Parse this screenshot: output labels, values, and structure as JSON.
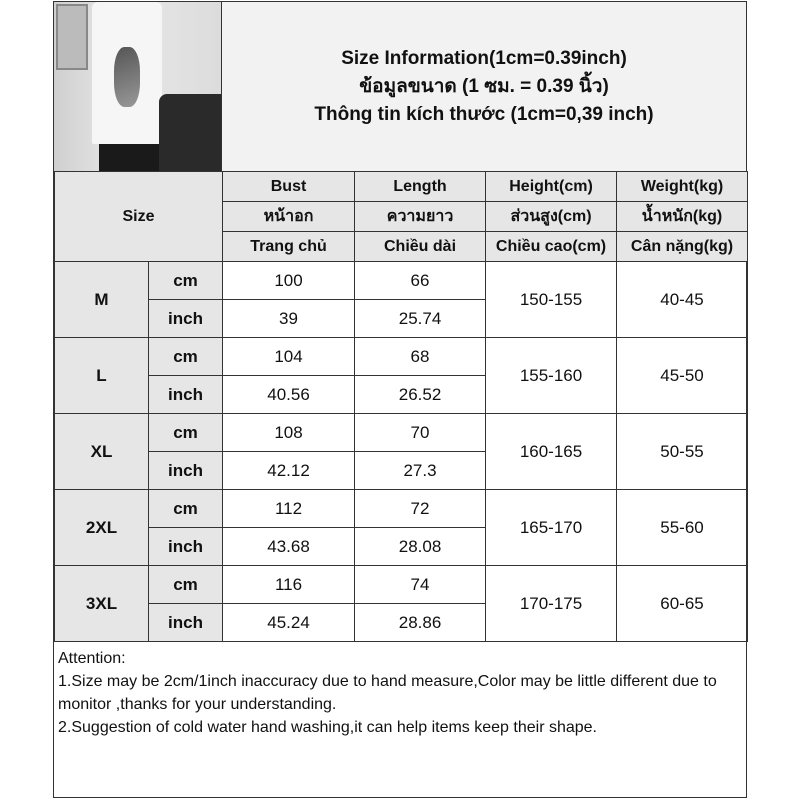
{
  "title": {
    "line1": "Size Information(1cm=0.39inch)",
    "line2": "ข้อมูลขนาด (1 ซม. = 0.39 นิ้ว)",
    "line3": "Thông tin kích thước (1cm=0,39 inch)"
  },
  "table": {
    "size_label": "Size",
    "headers": [
      [
        "Bust",
        "Length",
        "Height(cm)",
        "Weight(kg)"
      ],
      [
        "หน้าอก",
        "ความยาว",
        "ส่วนสูง(cm)",
        "น้ำหนัก(kg)"
      ],
      [
        "Trang chủ",
        "Chiều dài",
        "Chiều cao(cm)",
        "Cân nặng(kg)"
      ]
    ],
    "units": [
      "cm",
      "inch"
    ],
    "rows": [
      {
        "size": "M",
        "bust_cm": "100",
        "length_cm": "66",
        "bust_in": "39",
        "length_in": "25.74",
        "height": "150-155",
        "weight": "40-45"
      },
      {
        "size": "L",
        "bust_cm": "104",
        "length_cm": "68",
        "bust_in": "40.56",
        "length_in": "26.52",
        "height": "155-160",
        "weight": "45-50"
      },
      {
        "size": "XL",
        "bust_cm": "108",
        "length_cm": "70",
        "bust_in": "42.12",
        "length_in": "27.3",
        "height": "160-165",
        "weight": "50-55"
      },
      {
        "size": "2XL",
        "bust_cm": "112",
        "length_cm": "72",
        "bust_in": "43.68",
        "length_in": "28.08",
        "height": "165-170",
        "weight": "55-60"
      },
      {
        "size": "3XL",
        "bust_cm": "116",
        "length_cm": "74",
        "bust_in": "45.24",
        "length_in": "28.86",
        "height": "170-175",
        "weight": "60-65"
      }
    ]
  },
  "notes": {
    "heading": "Attention:",
    "items": [
      "1.Size may be 2cm/1inch inaccuracy due to hand measure,Color may be little different due to monitor ,thanks for your understanding.",
      "2.Suggestion of cold water hand washing,it can help items keep their shape."
    ]
  }
}
